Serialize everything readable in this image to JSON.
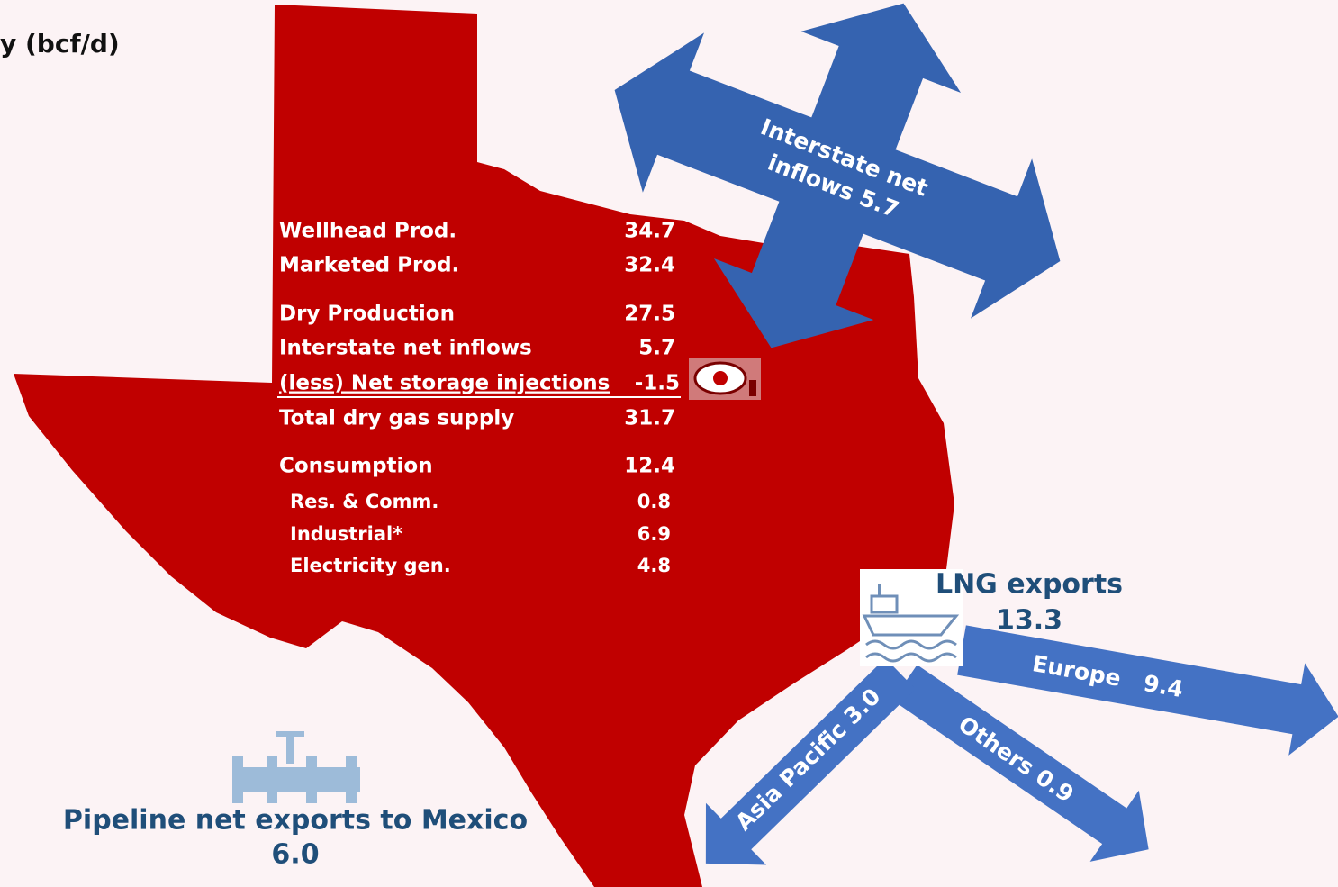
{
  "title": "y (bcf/d)",
  "table": {
    "rows": [
      [
        "Wellhead Prod.",
        "34.7"
      ],
      [
        "Marketed Prod.",
        "32.4"
      ],
      [
        "Dry Production",
        "27.5"
      ],
      [
        "Interstate net inflows",
        "5.7"
      ],
      [
        "(less) Net storage injections",
        "-1.5"
      ],
      [
        "Total dry gas supply",
        "31.7"
      ],
      [
        "Consumption",
        "12.4"
      ],
      [
        "Res. & Comm.",
        "0.8"
      ],
      [
        "Industrial*",
        "6.9"
      ],
      [
        "Electricity gen.",
        "4.8"
      ]
    ]
  },
  "interstate": {
    "line1": "Interstate net",
    "line2": "inflows 5.7"
  },
  "lng": {
    "label": "LNG exports",
    "value": "13.3",
    "destinations": [
      "Europe   9.4",
      "Asia Pacific 3.0",
      "Others 0.9"
    ]
  },
  "pipeline": {
    "label": "Pipeline net exports to Mexico",
    "value": "6.0"
  }
}
